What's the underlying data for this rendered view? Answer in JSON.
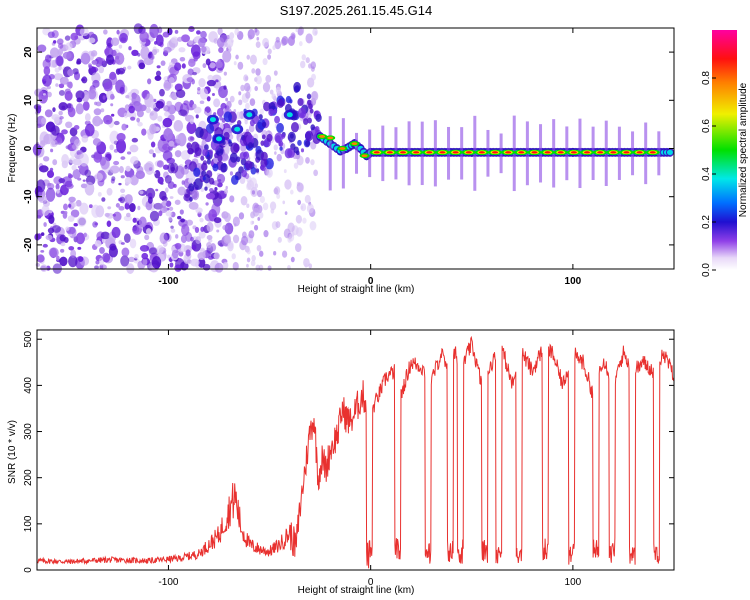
{
  "title": "S197.2025.261.15.45.G14",
  "chart_data": [
    {
      "type": "heatmap",
      "name": "spectrogram",
      "xlabel": "Height of straight line (km)",
      "ylabel": "Frequency (Hz)",
      "xlim": [
        -165,
        150
      ],
      "ylim": [
        -25,
        25
      ],
      "x_ticks": [
        -100,
        0,
        100
      ],
      "x_tick_labels": [
        "-100",
        "0",
        "100"
      ],
      "y_ticks": [
        -20,
        -10,
        0,
        10,
        20
      ],
      "y_tick_labels": [
        "-20",
        "-10",
        "0",
        "10",
        "20"
      ],
      "colorbar": {
        "label": "Normalized spectral amplitude",
        "range": [
          0,
          1
        ],
        "ticks": [
          0.0,
          0.2,
          0.4,
          0.6,
          0.8
        ],
        "tick_labels": [
          "0.0",
          "0.2",
          "0.4",
          "0.6",
          "0.8"
        ]
      },
      "dominant_track": {
        "description_points_x": [
          -25,
          -20,
          -15,
          -12,
          -8,
          -5,
          -2,
          0,
          10,
          50,
          100,
          148
        ],
        "description_points_y": [
          2.5,
          1,
          -0.5,
          0,
          1,
          0,
          -1.5,
          -0.8,
          -0.8,
          -0.8,
          -0.8,
          -0.8
        ]
      },
      "colors": {
        "scale": [
          "#ffffff",
          "#c8a8f0",
          "#8030e0",
          "#3010c0",
          "#0060ff",
          "#00e0e0",
          "#00e000",
          "#f0f000",
          "#ff8000",
          "#ff0000",
          "#ff00a0"
        ]
      }
    },
    {
      "type": "line",
      "name": "snr",
      "xlabel": "Height of straight line (km)",
      "ylabel": "SNR (10 * v/v)",
      "xlim": [
        -165,
        150
      ],
      "ylim": [
        0,
        520
      ],
      "x_ticks": [
        -100,
        0,
        100
      ],
      "x_tick_labels": [
        "-100",
        "0",
        "100"
      ],
      "y_ticks": [
        0,
        100,
        200,
        300,
        400,
        500
      ],
      "y_tick_labels": [
        "0",
        "100",
        "200",
        "300",
        "400",
        "500"
      ],
      "series": [
        {
          "name": "SNR",
          "color": "#e8312f",
          "x": [
            -165,
            -150,
            -130,
            -110,
            -95,
            -85,
            -80,
            -75,
            -70,
            -67,
            -64,
            -60,
            -55,
            -50,
            -45,
            -40,
            -37,
            -35,
            -33,
            -30,
            -28,
            -26,
            -24,
            -22,
            -20,
            -18,
            -16,
            -14,
            -12,
            -10,
            -8,
            -6,
            -4,
            -2,
            0,
            5,
            8,
            12,
            15,
            20,
            25,
            30,
            35,
            38,
            42,
            45,
            50,
            55,
            60,
            65,
            70,
            75,
            80,
            85,
            90,
            95,
            100,
            105,
            110,
            115,
            120,
            125,
            130,
            135,
            140,
            145,
            150
          ],
          "y": [
            20,
            18,
            22,
            20,
            25,
            35,
            55,
            75,
            130,
            160,
            90,
            55,
            45,
            40,
            55,
            80,
            50,
            130,
            200,
            300,
            330,
            200,
            240,
            220,
            260,
            280,
            300,
            350,
            330,
            320,
            340,
            360,
            380,
            360,
            340,
            390,
            420,
            430,
            380,
            450,
            440,
            410,
            470,
            430,
            470,
            440,
            490,
            400,
            450,
            480,
            400,
            470,
            430,
            480,
            470,
            400,
            470,
            450,
            380,
            460,
            400,
            470,
            430,
            450,
            430,
            470,
            420
          ]
        }
      ],
      "dropouts_x": [
        -2,
        12,
        27,
        38,
        43,
        55,
        62,
        72,
        85,
        98,
        110,
        118,
        128,
        140
      ],
      "dropout_level": 40
    }
  ]
}
